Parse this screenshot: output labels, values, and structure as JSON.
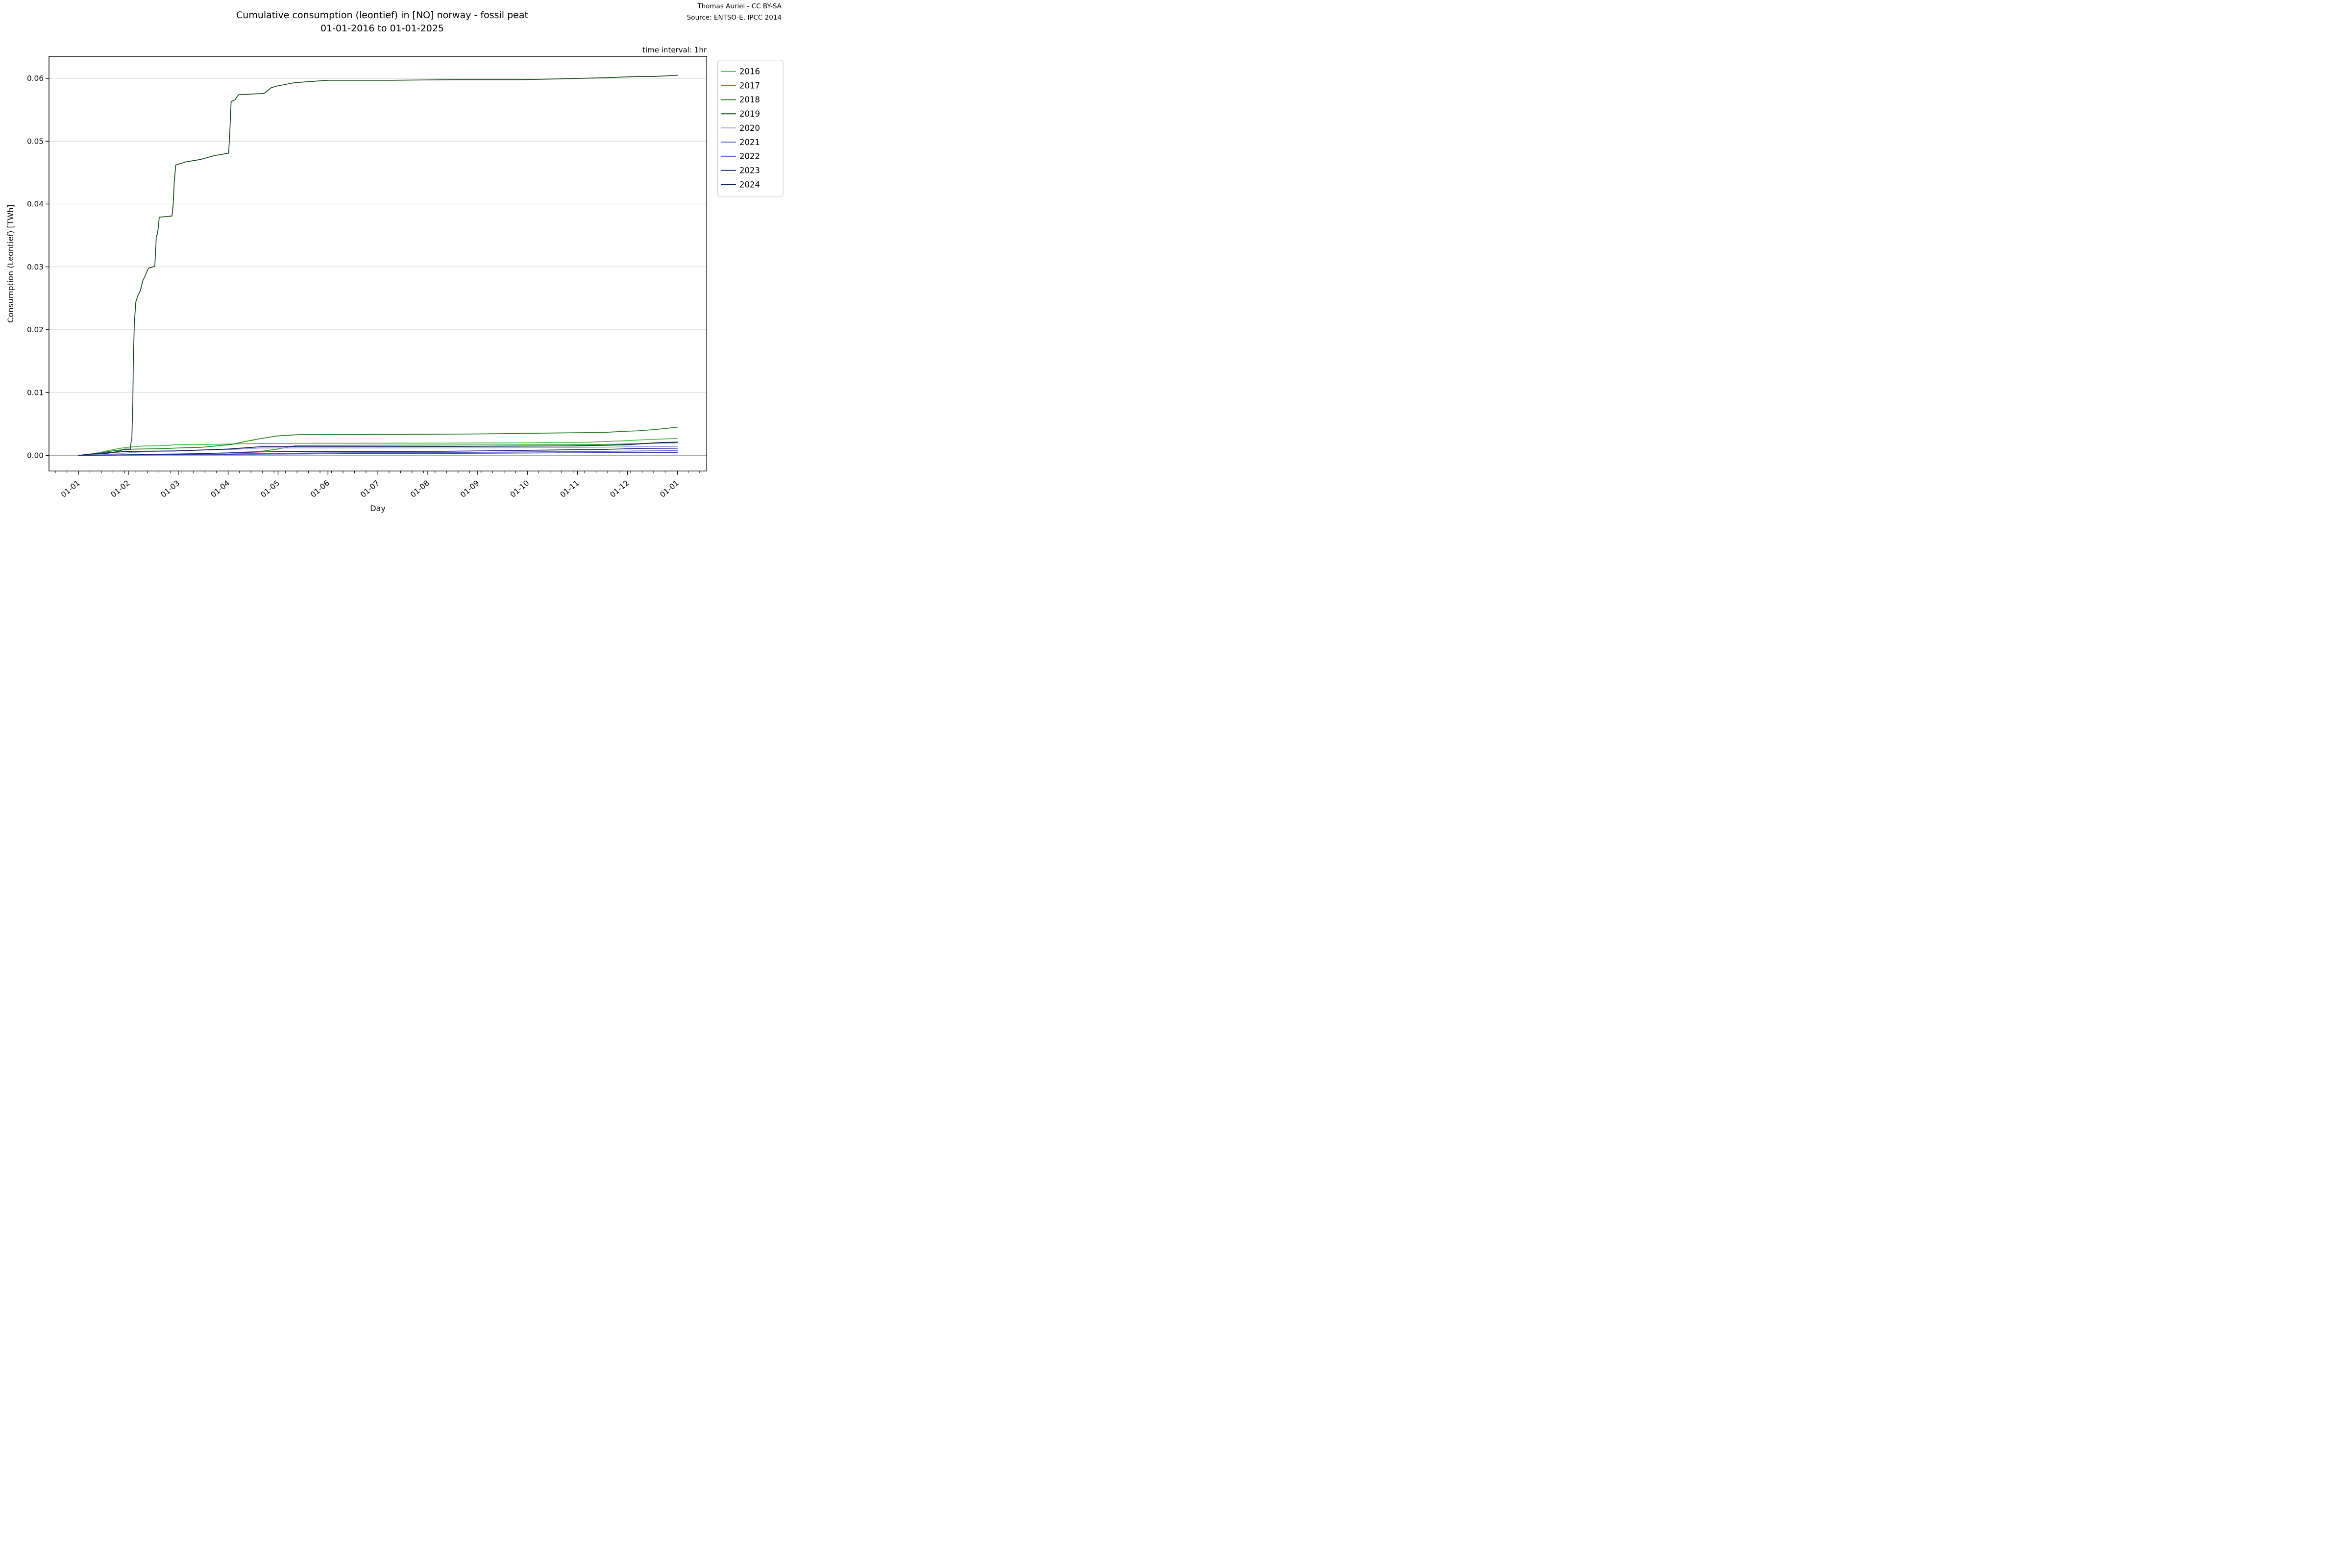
{
  "header": {
    "title_line1": "Cumulative consumption (leontief) in [NO] norway - fossil peat",
    "title_line2": "01-01-2016 to 01-01-2025",
    "attribution_line1": "Thomas Auriel - CC BY-SA",
    "attribution_line2": "Source: ENTSO-E, IPCC 2014",
    "time_interval_note": "time interval: 1hr"
  },
  "chart_data": {
    "type": "line",
    "title": "Cumulative consumption (leontief) in [NO] norway - fossil peat 01-01-2016 to 01-01-2025",
    "xlabel": "Day",
    "ylabel": "Consumption (Leontief) [TWh]",
    "x_tick_labels": [
      "01-01",
      "01-02",
      "01-03",
      "01-04",
      "01-05",
      "01-06",
      "01-07",
      "01-08",
      "01-09",
      "01-10",
      "01-11",
      "01-12",
      "01-01"
    ],
    "y_tick_labels": [
      "0.00",
      "0.01",
      "0.02",
      "0.03",
      "0.04",
      "0.05",
      "0.06"
    ],
    "y_tick_values": [
      0.0,
      0.01,
      0.02,
      0.03,
      0.04,
      0.05,
      0.06
    ],
    "ylim": [
      -0.0025,
      0.0635
    ],
    "xlim_months": [
      -0.59,
      12.59
    ],
    "grid": "horizontal-only",
    "zero_line_color": "#a8a8a8",
    "grid_color": "#d9d9d9",
    "legend_position": "upper-right-outside",
    "legend_entries": [
      "2016",
      "2017",
      "2018",
      "2019",
      "2020",
      "2021",
      "2022",
      "2023",
      "2024"
    ],
    "series": [
      {
        "name": "2016",
        "color": "#44bb44",
        "points": [
          [
            0,
            0
          ],
          [
            0.21,
            0.0002
          ],
          [
            0.39,
            0.0004
          ],
          [
            0.56,
            0.0007
          ],
          [
            0.75,
            0.001
          ],
          [
            0.9,
            0.0012
          ],
          [
            1.13,
            0.0014
          ],
          [
            1.32,
            0.0015
          ],
          [
            1.75,
            0.00155
          ],
          [
            1.95,
            0.0017
          ],
          [
            2.36,
            0.00172
          ],
          [
            3.67,
            0.0019
          ],
          [
            4.97,
            0.00193
          ],
          [
            7.27,
            0.00195
          ],
          [
            8.9,
            0.002
          ],
          [
            10.21,
            0.0021
          ],
          [
            10.86,
            0.0023
          ],
          [
            11.36,
            0.0025
          ],
          [
            11.85,
            0.00265
          ],
          [
            12,
            0.0027
          ]
        ]
      },
      {
        "name": "2017",
        "color": "#2f9e2f",
        "points": [
          [
            0,
            0
          ],
          [
            1.0,
            0.0001
          ],
          [
            1.7,
            0.0002
          ],
          [
            2.5,
            0.0003
          ],
          [
            3.0,
            0.0004
          ],
          [
            3.67,
            0.00065
          ],
          [
            3.99,
            0.001
          ],
          [
            4.19,
            0.0013
          ],
          [
            4.39,
            0.0016
          ],
          [
            5.63,
            0.00162
          ],
          [
            7.27,
            0.00165
          ],
          [
            8.9,
            0.00168
          ],
          [
            10.21,
            0.0017
          ],
          [
            10.86,
            0.0018
          ],
          [
            11.36,
            0.0019
          ],
          [
            11.85,
            0.00198
          ],
          [
            12,
            0.002
          ]
        ]
      },
      {
        "name": "2018",
        "color": "#1e7d1e",
        "points": [
          [
            0,
            0
          ],
          [
            0.39,
            0.0003
          ],
          [
            0.59,
            0.0006
          ],
          [
            0.75,
            0.0008
          ],
          [
            0.9,
            0.0009
          ],
          [
            1.01,
            0.00095
          ],
          [
            1.13,
            0.001
          ],
          [
            1.6,
            0.00105
          ],
          [
            1.98,
            0.00117
          ],
          [
            2.49,
            0.0013
          ],
          [
            3.08,
            0.00175
          ],
          [
            3.34,
            0.0022
          ],
          [
            3.67,
            0.0027
          ],
          [
            3.99,
            0.0031
          ],
          [
            4.42,
            0.0033
          ],
          [
            6.87,
            0.00335
          ],
          [
            7.92,
            0.0034
          ],
          [
            8.9,
            0.0035
          ],
          [
            9.88,
            0.0036
          ],
          [
            10.54,
            0.00365
          ],
          [
            10.86,
            0.0038
          ],
          [
            11.19,
            0.0039
          ],
          [
            11.52,
            0.0041
          ],
          [
            11.78,
            0.0043
          ],
          [
            12,
            0.0045
          ]
        ]
      },
      {
        "name": "2019",
        "color": "#104a10",
        "points": [
          [
            0,
            0
          ],
          [
            0.46,
            0.0002
          ],
          [
            0.65,
            0.0004
          ],
          [
            0.82,
            0.0007
          ],
          [
            0.92,
            0.001
          ],
          [
            1.04,
            0.001
          ],
          [
            1.05,
            0.0018
          ],
          [
            1.06,
            0.0023
          ],
          [
            1.07,
            0.0025
          ],
          [
            1.09,
            0.008
          ],
          [
            1.1,
            0.015
          ],
          [
            1.12,
            0.021
          ],
          [
            1.15,
            0.0244
          ],
          [
            1.19,
            0.0254
          ],
          [
            1.24,
            0.0262
          ],
          [
            1.29,
            0.0278
          ],
          [
            1.34,
            0.0286
          ],
          [
            1.39,
            0.0296
          ],
          [
            1.41,
            0.0298
          ],
          [
            1.53,
            0.0301
          ],
          [
            1.55,
            0.033
          ],
          [
            1.56,
            0.0348
          ],
          [
            1.58,
            0.0352
          ],
          [
            1.6,
            0.0362
          ],
          [
            1.62,
            0.0379
          ],
          [
            1.875,
            0.0381
          ],
          [
            1.9,
            0.04
          ],
          [
            1.92,
            0.0435
          ],
          [
            1.95,
            0.0462
          ],
          [
            2.03,
            0.0464
          ],
          [
            2.15,
            0.0467
          ],
          [
            2.45,
            0.0471
          ],
          [
            2.72,
            0.0477
          ],
          [
            3.01,
            0.0481
          ],
          [
            3.03,
            0.051
          ],
          [
            3.05,
            0.0545
          ],
          [
            3.06,
            0.0563
          ],
          [
            3.14,
            0.0566
          ],
          [
            3.17,
            0.057
          ],
          [
            3.21,
            0.0574
          ],
          [
            3.72,
            0.0576
          ],
          [
            3.8,
            0.0581
          ],
          [
            3.86,
            0.0585
          ],
          [
            3.99,
            0.0588
          ],
          [
            4.32,
            0.0593
          ],
          [
            4.65,
            0.0595
          ],
          [
            5.01,
            0.0597
          ],
          [
            6.28,
            0.0597
          ],
          [
            7.59,
            0.0598
          ],
          [
            8.9,
            0.0598
          ],
          [
            9.56,
            0.0599
          ],
          [
            10.05,
            0.06
          ],
          [
            10.54,
            0.0601
          ],
          [
            11.19,
            0.0603
          ],
          [
            11.52,
            0.0603
          ],
          [
            11.78,
            0.0604
          ],
          [
            12,
            0.0605
          ]
        ]
      },
      {
        "name": "2020",
        "color": "#98a2e0",
        "points": [
          [
            0,
            0
          ],
          [
            0.72,
            0.0002
          ],
          [
            1.05,
            0.00045
          ],
          [
            1.37,
            0.0006
          ],
          [
            1.7,
            0.0007
          ],
          [
            2.52,
            0.00086
          ],
          [
            3.11,
            0.00095
          ],
          [
            3.67,
            0.00117
          ],
          [
            7.27,
            0.00118
          ],
          [
            8.25,
            0.0012
          ],
          [
            9.56,
            0.00125
          ],
          [
            10.54,
            0.0013
          ],
          [
            11.19,
            0.0014
          ],
          [
            12,
            0.00143
          ]
        ]
      },
      {
        "name": "2021",
        "color": "#5661c9",
        "points": [
          [
            0,
            0
          ],
          [
            1.37,
            0.0001
          ],
          [
            2.68,
            0.0002
          ],
          [
            3.67,
            0.0003
          ],
          [
            4.97,
            0.0004
          ],
          [
            6.94,
            0.00045
          ],
          [
            8.25,
            0.0005
          ],
          [
            9.56,
            0.0006
          ],
          [
            10.54,
            0.00065
          ],
          [
            11.19,
            0.0007
          ],
          [
            12,
            0.00075
          ]
        ]
      },
      {
        "name": "2022",
        "color": "#3642ae",
        "points": [
          [
            0,
            0
          ],
          [
            1.7,
            0.0001
          ],
          [
            3.67,
            0.0002
          ],
          [
            5.63,
            0.00028
          ],
          [
            7.59,
            0.00032
          ],
          [
            9.56,
            0.0004
          ],
          [
            10.86,
            0.00044
          ],
          [
            12,
            0.00047
          ]
        ]
      },
      {
        "name": "2023",
        "color": "#232a84",
        "points": [
          [
            0,
            0
          ],
          [
            1.05,
            0.0001
          ],
          [
            2.03,
            0.0002
          ],
          [
            3.01,
            0.0004
          ],
          [
            3.67,
            0.00055
          ],
          [
            4.16,
            0.00062
          ],
          [
            7.27,
            0.00065
          ],
          [
            8.9,
            0.0008
          ],
          [
            9.88,
            0.0009
          ],
          [
            10.54,
            0.00095
          ],
          [
            11.19,
            0.0011
          ],
          [
            12,
            0.00114
          ]
        ]
      },
      {
        "name": "2024",
        "color": "#151c57",
        "points": [
          [
            0,
            0
          ],
          [
            0.39,
            0.0003
          ],
          [
            0.92,
            0.0006
          ],
          [
            1.08,
            0.00065
          ],
          [
            1.93,
            0.0007
          ],
          [
            2.98,
            0.001
          ],
          [
            3.67,
            0.00138
          ],
          [
            6.94,
            0.0014
          ],
          [
            8.25,
            0.00145
          ],
          [
            9.88,
            0.0015
          ],
          [
            10.54,
            0.0016
          ],
          [
            11.03,
            0.0017
          ],
          [
            11.36,
            0.0019
          ],
          [
            11.68,
            0.00205
          ],
          [
            12,
            0.0021
          ]
        ]
      }
    ]
  }
}
